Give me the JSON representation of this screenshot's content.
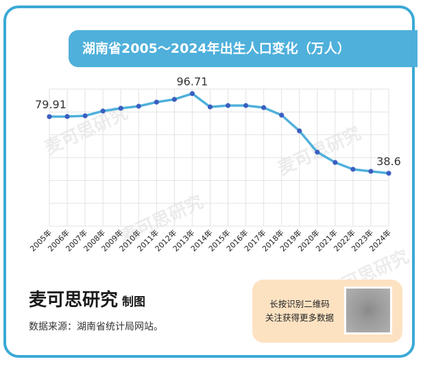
{
  "title": "湖南省2005～2024年出生人口变化（万人）",
  "brand": {
    "name": "麦可思研究",
    "suffix": "制图"
  },
  "source": "数据来源：湖南省统计局网站。",
  "qr": {
    "line1": "长按识别二维码",
    "line2": "关注获得更多数据"
  },
  "watermark": "麦可思研究",
  "colors": {
    "line": "#4fb0db",
    "marker": "#3b5fc0",
    "accent": "#3aa9d6",
    "qr_bg": "#fde2c2"
  },
  "chart_data": {
    "type": "line",
    "title": "湖南省2005～2024年出生人口变化（万人）",
    "categories": [
      "2005年",
      "2006年",
      "2007年",
      "2008年",
      "2009年",
      "2010年",
      "2011年",
      "2012年",
      "2013年",
      "2014年",
      "2015年",
      "2016年",
      "2017年",
      "2018年",
      "2019年",
      "2020年",
      "2021年",
      "2022年",
      "2023年",
      "2024年"
    ],
    "values": [
      79.91,
      80.0,
      80.5,
      84.0,
      86.0,
      87.5,
      90.5,
      92.5,
      96.71,
      87.0,
      88.0,
      88.0,
      86.5,
      81.0,
      69.5,
      54.0,
      46.5,
      41.5,
      40.0,
      38.6
    ],
    "data_labels": [
      {
        "index": 0,
        "text": "79.91"
      },
      {
        "index": 8,
        "text": "96.71"
      },
      {
        "index": 19,
        "text": "38.6"
      }
    ],
    "ylim": [
      0,
      100
    ],
    "grid": true,
    "xlabel": "",
    "ylabel": ""
  }
}
